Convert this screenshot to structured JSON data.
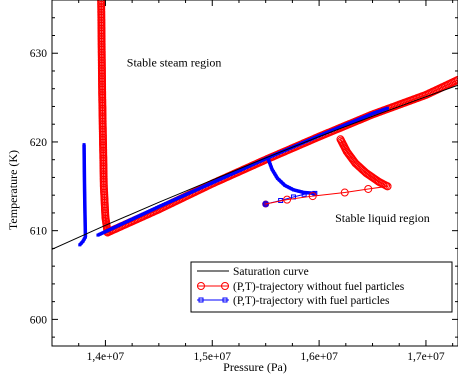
{
  "chart_data": {
    "type": "line",
    "xlabel": "Pressure (Pa)",
    "ylabel": "Temperature (K)",
    "xlim": [
      13500000,
      17300000
    ],
    "ylim": [
      597,
      636
    ],
    "x_ticks": [
      14000000,
      15000000,
      16000000,
      17000000
    ],
    "x_tick_labels": [
      "1,4e+07",
      "1,5e+07",
      "1,6e+07",
      "1,7e+07"
    ],
    "y_ticks": [
      600,
      610,
      620,
      630
    ],
    "y_tick_labels": [
      "600",
      "610",
      "620",
      "630"
    ],
    "grid": false,
    "legend_position": "bottom-right",
    "annotations": [
      {
        "text": "Stable steam region",
        "x": 14200000,
        "y": 628.5
      },
      {
        "text": "Stable liquid region",
        "x": 16150000,
        "y": 611
      }
    ],
    "series": [
      {
        "name": "Saturation curve",
        "color": "#000000",
        "marker": "none",
        "x": [
          13500000,
          14000000,
          14500000,
          15000000,
          15500000,
          16000000,
          16500000,
          17000000,
          17300000
        ],
        "y": [
          607.9,
          610.6,
          613.2,
          615.7,
          618.2,
          620.6,
          622.9,
          625.1,
          626.4
        ]
      },
      {
        "name": "(P,T)-trajectory without fuel particles",
        "color": "#ff0000",
        "marker": "open-circle",
        "segments": [
          {
            "x": [
              13960000,
              13970000,
              13985000,
              14000000,
              14020000
            ],
            "y": [
              636,
              625,
              615,
              611.5,
              609.8
            ]
          },
          {
            "x": [
              14020000,
              14500000,
              15000000,
              15500000,
              16000000,
              16500000,
              17000000,
              17300000
            ],
            "y": [
              609.8,
              612.4,
              615.3,
              618.0,
              620.6,
              623.1,
              625.3,
              627.0
            ]
          },
          {
            "x": [
              16200000,
              16260000,
              16340000,
              16440000,
              16560000,
              16640000
            ],
            "y": [
              620.3,
              618.9,
              617.6,
              616.5,
              615.5,
              615.0
            ]
          }
        ],
        "trajectory": {
          "x": [
            15500000,
            15700000,
            15940000,
            16240000,
            16460000,
            16640000
          ],
          "y": [
            613.0,
            613.5,
            613.9,
            614.3,
            614.7,
            615.0
          ]
        }
      },
      {
        "name": "(P,T)-trajectory with fuel particles",
        "color": "#0000ff",
        "marker": "small-square",
        "segments": [
          {
            "x": [
              13800000,
              13805000,
              13810000,
              13813000
            ],
            "y": [
              619.7,
              614.5,
              611.0,
              609.3
            ]
          },
          {
            "x": [
              13760000,
              13790000,
              13813000
            ],
            "y": [
              608.4,
              608.8,
              609.3
            ]
          },
          {
            "x": [
              13930000,
              14500000,
              15000000,
              15500000,
              16000000,
              16500000,
              16640000
            ],
            "y": [
              609.5,
              612.7,
              615.4,
              618.1,
              620.7,
              623.2,
              623.8
            ]
          },
          {
            "x": [
              15520000,
              15560000,
              15610000,
              15680000,
              15760000,
              15860000,
              15960000
            ],
            "y": [
              618.2,
              616.9,
              615.9,
              615.1,
              614.6,
              614.3,
              614.2
            ]
          }
        ],
        "trajectory": {
          "x": [
            15500000,
            15640000,
            15760000,
            15860000,
            15960000
          ],
          "y": [
            613.0,
            613.4,
            613.8,
            614.1,
            614.2
          ]
        }
      }
    ]
  }
}
